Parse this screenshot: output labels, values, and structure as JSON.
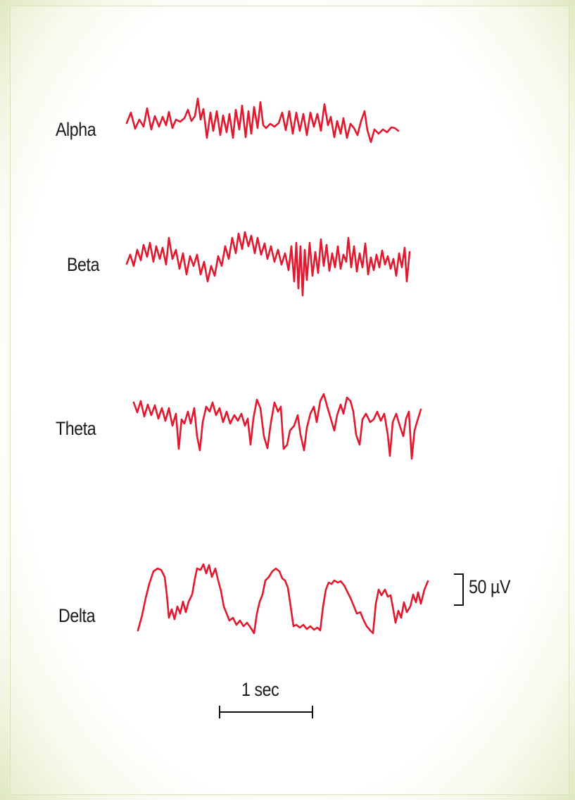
{
  "rhythms": [
    {
      "name": "Alpha"
    },
    {
      "name": "Beta"
    },
    {
      "name": "Theta"
    },
    {
      "name": "Delta"
    }
  ],
  "scale": {
    "amplitude_label": "50 µV",
    "time_label": "1 sec"
  },
  "colors": {
    "trace": "#e0192f",
    "text": "#1a1a1a",
    "border": "#dfe8c2"
  }
}
